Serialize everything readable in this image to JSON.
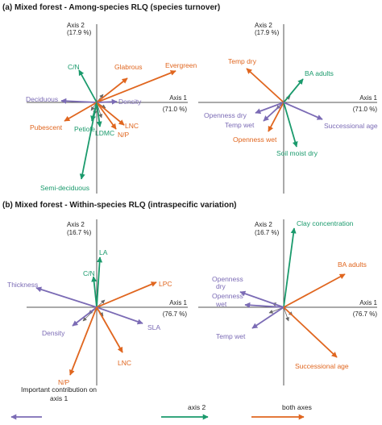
{
  "colors": {
    "axis1": "#7b6bb5",
    "axis2": "#1a9a6c",
    "both": "#e0661f",
    "minor": "#666666",
    "frame": "#555555"
  },
  "titles": {
    "a": "(a) Mixed forest - Among-species RLQ (species turnover)",
    "b": "(b) Mixed forest - Within-species RLQ (intraspecific variation)"
  },
  "legend": {
    "heading_line1": "Important contribution on",
    "heading_line2": "axis 1",
    "axis2": "axis 2",
    "both": "both axes"
  },
  "panels": [
    {
      "id": "a-left",
      "axis1_label": "Axis 1",
      "axis1_pct": "(71.0 %)",
      "axis2_label": "Axis 2",
      "axis2_pct": "(17.9 %)",
      "vectors": [
        {
          "label": "Evergreen",
          "color": "both"
        },
        {
          "label": "Glabrous",
          "color": "both"
        },
        {
          "label": "C/N",
          "color": "axis2"
        },
        {
          "label": "Deciduous",
          "color": "axis1"
        },
        {
          "label": "Density",
          "color": "axis1"
        },
        {
          "label": "Pubescent",
          "color": "both"
        },
        {
          "label": "Petiole",
          "color": "axis2"
        },
        {
          "label": "LDMC",
          "color": "axis2"
        },
        {
          "label": "LNC",
          "color": "both"
        },
        {
          "label": "N/P",
          "color": "both"
        },
        {
          "label": "Semi-deciduous",
          "color": "axis2"
        }
      ]
    },
    {
      "id": "a-right",
      "axis1_label": "Axis 1",
      "axis1_pct": "(71.0 %)",
      "axis2_label": "Axis 2",
      "axis2_pct": "(17.9 %)",
      "vectors": [
        {
          "label": "Temp dry",
          "color": "both"
        },
        {
          "label": "BA adults",
          "color": "axis2"
        },
        {
          "label": "Openness dry",
          "color": "axis1"
        },
        {
          "label": "Temp wet",
          "color": "axis1"
        },
        {
          "label": "Openness wet",
          "color": "both"
        },
        {
          "label": "Soil moist dry",
          "color": "axis2"
        },
        {
          "label": "Successional age",
          "color": "axis1"
        }
      ]
    },
    {
      "id": "b-left",
      "axis1_label": "Axis 1",
      "axis1_pct": "(76.7 %)",
      "axis2_label": "Axis 2",
      "axis2_pct": "(16.7 %)",
      "vectors": [
        {
          "label": "LA",
          "color": "axis2"
        },
        {
          "label": "C/N",
          "color": "axis2"
        },
        {
          "label": "Thickness",
          "color": "axis1"
        },
        {
          "label": "LPC",
          "color": "both"
        },
        {
          "label": "Density",
          "color": "axis1"
        },
        {
          "label": "SLA",
          "color": "axis1"
        },
        {
          "label": "LNC",
          "color": "both"
        },
        {
          "label": "N/P",
          "color": "both"
        }
      ]
    },
    {
      "id": "b-right",
      "axis1_label": "Axis 1",
      "axis1_pct": "(76.7 %)",
      "axis2_label": "Axis 2",
      "axis2_pct": "(16.7 %)",
      "vectors": [
        {
          "label": "Clay concentration",
          "color": "axis2"
        },
        {
          "label": "BA adults",
          "color": "both"
        },
        {
          "label": "Openness dry",
          "color": "axis1"
        },
        {
          "label": "Openness wet",
          "color": "axis1"
        },
        {
          "label": "Temp wet",
          "color": "axis1"
        },
        {
          "label": "Successional age",
          "color": "both"
        }
      ]
    }
  ]
}
